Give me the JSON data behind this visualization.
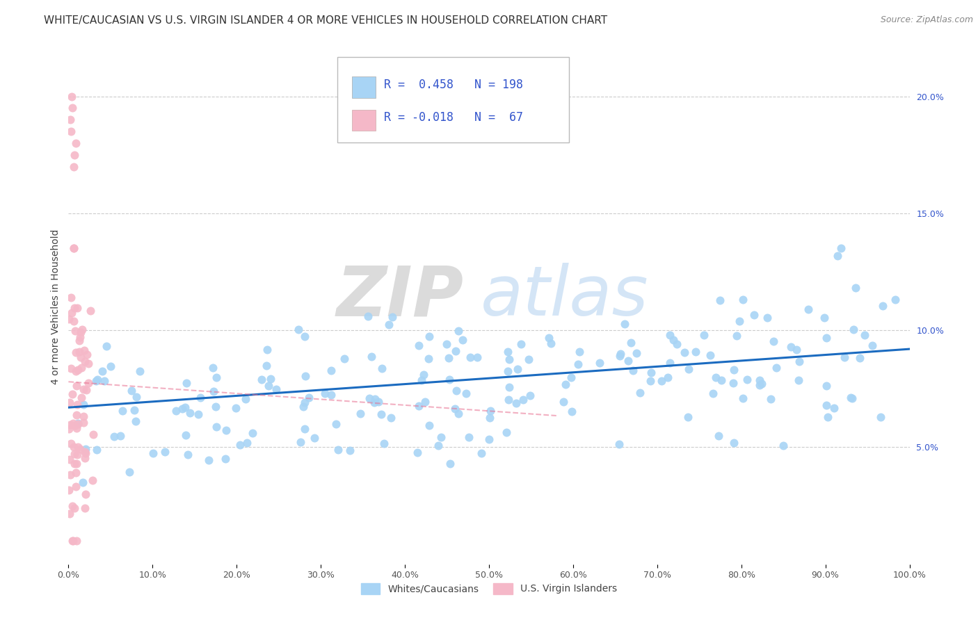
{
  "title": "WHITE/CAUCASIAN VS U.S. VIRGIN ISLANDER 4 OR MORE VEHICLES IN HOUSEHOLD CORRELATION CHART",
  "source": "Source: ZipAtlas.com",
  "ylabel": "4 or more Vehicles in Household",
  "legend_labels": [
    "Whites/Caucasians",
    "U.S. Virgin Islanders"
  ],
  "blue_R": 0.458,
  "blue_N": 198,
  "pink_R": -0.018,
  "pink_N": 67,
  "xlim": [
    0.0,
    1.0
  ],
  "ylim": [
    0.0,
    0.22
  ],
  "x_ticks": [
    0.0,
    0.1,
    0.2,
    0.3,
    0.4,
    0.5,
    0.6,
    0.7,
    0.8,
    0.9,
    1.0
  ],
  "y_ticks": [
    0.05,
    0.1,
    0.15,
    0.2
  ],
  "blue_color": "#A8D4F5",
  "pink_color": "#F5B8C8",
  "blue_line_color": "#1B6BC0",
  "pink_line_color": "#E87090",
  "watermark_zip": "ZIP",
  "watermark_atlas": "atlas",
  "title_fontsize": 11,
  "background_color": "#FFFFFF",
  "grid_color": "#CCCCCC",
  "text_color_blue": "#3355CC",
  "tick_color": "#555555"
}
